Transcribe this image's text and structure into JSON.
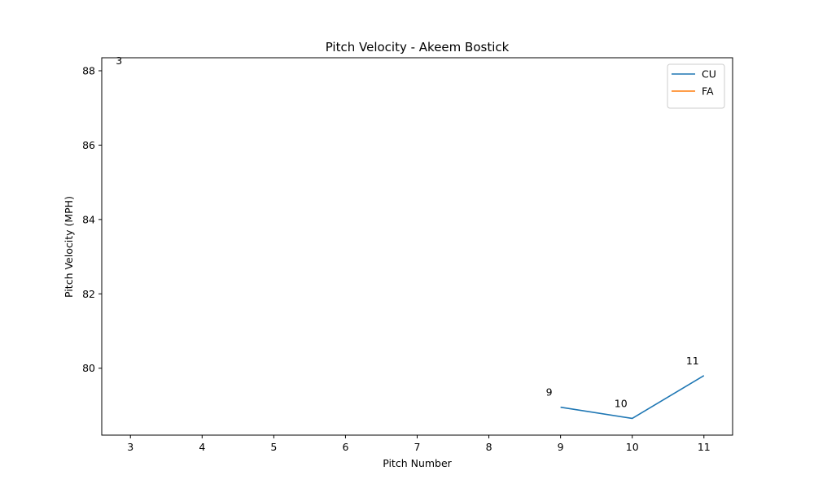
{
  "chart_data": {
    "type": "line",
    "title": "Pitch Velocity - Akeem Bostick",
    "xlabel": "Pitch Number",
    "ylabel": "Pitch Velocity (MPH)",
    "xlim": [
      2.6,
      11.4
    ],
    "ylim": [
      78.2,
      88.35
    ],
    "xticks": [
      3,
      4,
      5,
      6,
      7,
      8,
      9,
      10,
      11
    ],
    "yticks": [
      80,
      82,
      84,
      86,
      88
    ],
    "grid": false,
    "legend_position": "top-right",
    "series": [
      {
        "name": "CU",
        "color": "#1f77b4",
        "x": [
          9,
          10,
          11
        ],
        "y": [
          78.95,
          78.65,
          79.8
        ],
        "labels": [
          "9",
          "10",
          "11"
        ]
      },
      {
        "name": "FA",
        "color": "#ff7f0e",
        "x": [
          3
        ],
        "y": [
          88.5
        ],
        "labels": [
          "3"
        ]
      }
    ]
  }
}
